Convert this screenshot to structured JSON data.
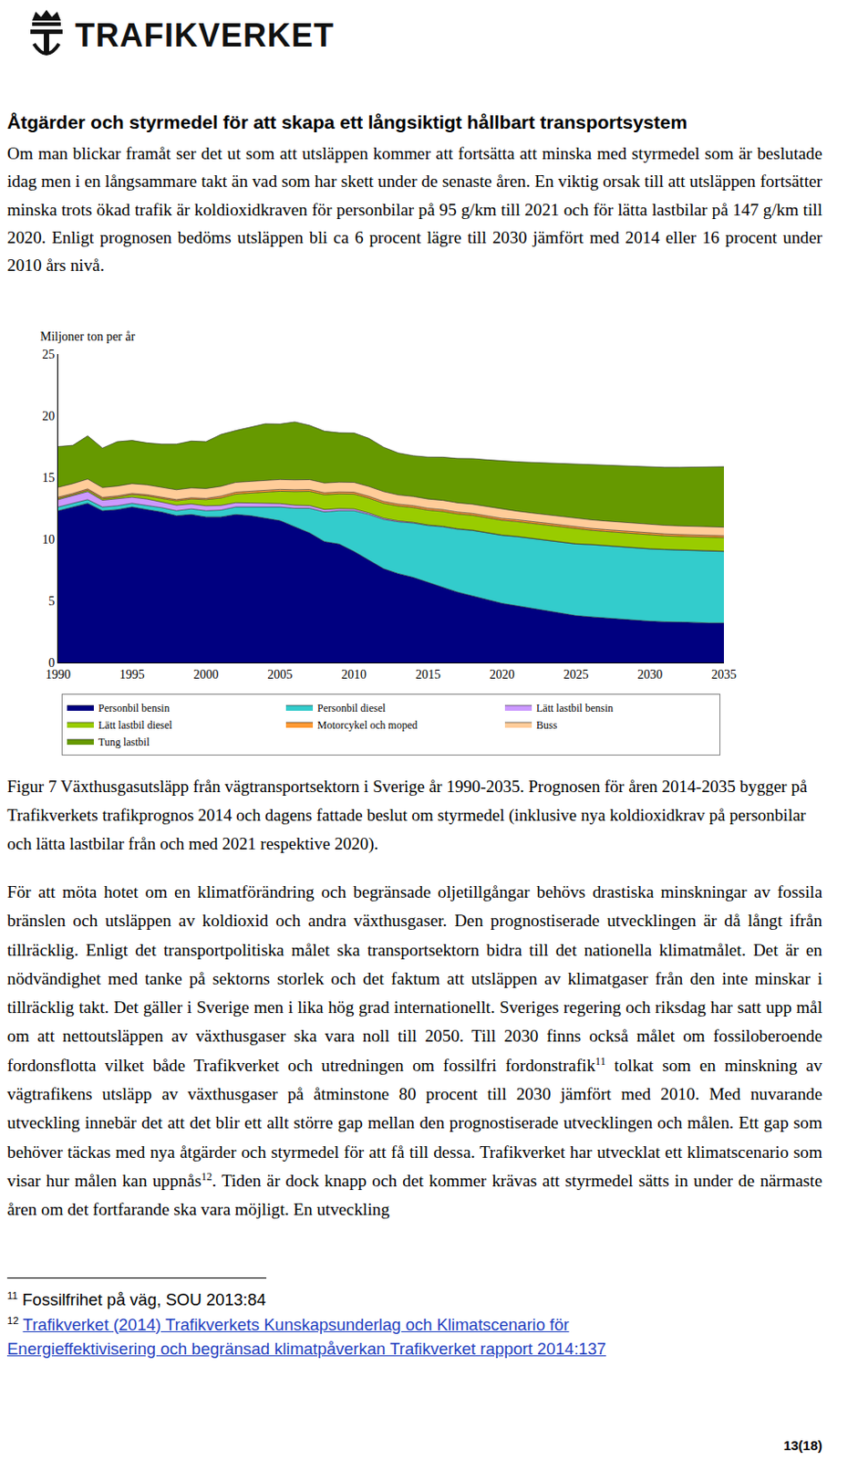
{
  "logo": "TRAFIKVERKET",
  "heading": "Åtgärder och styrmedel för att skapa ett långsiktigt hållbart transportsystem",
  "paragraphs_before": [
    [
      "Om man blickar framåt ser det ut som att utsläppen kommer att fortsätta att minska med styrmedel som är beslutade idag men i en långsammare takt än vad som har skett under de senaste åren. En viktig orsak till att utsläppen fortsätter minska trots ökad trafik är koldioxidkraven för personbilar på 95 g/km till 2021 och för lätta lastbilar på 147 g/km till 2020. Enligt prognosen bedöms utsläppen bli ca 6 procent lägre till 2030 jämfört med 2014 eller 16 procent under 2010 års nivå."
    ]
  ],
  "chart_data": {
    "type": "area",
    "stacked": true,
    "ylabel": "Miljoner ton per år",
    "x": [
      1990,
      1991,
      1992,
      1993,
      1994,
      1995,
      1996,
      1997,
      1998,
      1999,
      2000,
      2001,
      2002,
      2003,
      2004,
      2005,
      2006,
      2007,
      2008,
      2009,
      2010,
      2011,
      2012,
      2013,
      2014,
      2015,
      2016,
      2017,
      2018,
      2019,
      2020,
      2021,
      2022,
      2023,
      2024,
      2025,
      2026,
      2027,
      2028,
      2029,
      2030,
      2031,
      2032,
      2033,
      2034,
      2035
    ],
    "xlim": [
      1990,
      2035
    ],
    "xticks": [
      1990,
      1995,
      2000,
      2005,
      2010,
      2015,
      2020,
      2025,
      2030,
      2035
    ],
    "ylim": [
      0,
      25
    ],
    "yticks": [
      0,
      5,
      10,
      15,
      20,
      25
    ],
    "grid": false,
    "legend": "bottom",
    "series": [
      {
        "name": "Personbil bensin",
        "color": "#000080",
        "values": [
          12.3,
          12.6,
          12.9,
          12.3,
          12.4,
          12.6,
          12.4,
          12.2,
          11.9,
          12.0,
          11.8,
          11.8,
          12.0,
          11.9,
          11.7,
          11.5,
          11.0,
          10.5,
          9.8,
          9.6,
          9.0,
          8.3,
          7.6,
          7.2,
          6.9,
          6.5,
          6.1,
          5.7,
          5.4,
          5.1,
          4.8,
          4.6,
          4.4,
          4.2,
          4.0,
          3.8,
          3.7,
          3.6,
          3.5,
          3.4,
          3.35,
          3.3,
          3.3,
          3.25,
          3.2,
          3.2
        ]
      },
      {
        "name": "Personbil diesel",
        "color": "#33CCCC",
        "values": [
          0.3,
          0.3,
          0.3,
          0.3,
          0.3,
          0.3,
          0.35,
          0.35,
          0.4,
          0.45,
          0.5,
          0.55,
          0.6,
          0.7,
          0.9,
          1.1,
          1.5,
          2.0,
          2.4,
          2.7,
          3.3,
          3.7,
          4.0,
          4.2,
          4.4,
          4.6,
          4.9,
          5.1,
          5.3,
          5.4,
          5.5,
          5.6,
          5.65,
          5.7,
          5.75,
          5.8,
          5.85,
          5.85,
          5.85,
          5.85,
          5.85,
          5.85,
          5.8,
          5.8,
          5.8,
          5.8
        ]
      },
      {
        "name": "Lätt lastbil bensin",
        "color": "#CC99FF",
        "values": [
          0.6,
          0.6,
          0.65,
          0.55,
          0.55,
          0.5,
          0.5,
          0.45,
          0.45,
          0.4,
          0.4,
          0.38,
          0.35,
          0.33,
          0.3,
          0.28,
          0.25,
          0.22,
          0.2,
          0.17,
          0.15,
          0.12,
          0.1,
          0.08,
          0.06,
          0.05,
          0.04,
          0.04,
          0.03,
          0.03,
          0.03,
          0.02,
          0.02,
          0.02,
          0.02,
          0.02,
          0.02,
          0.02,
          0.02,
          0.02,
          0.02,
          0.02,
          0.02,
          0.02,
          0.02,
          0.02
        ]
      },
      {
        "name": "Lätt lastbil diesel",
        "color": "#99CC00",
        "values": [
          0.1,
          0.1,
          0.12,
          0.13,
          0.15,
          0.2,
          0.25,
          0.3,
          0.35,
          0.4,
          0.5,
          0.6,
          0.7,
          0.8,
          0.9,
          1.0,
          1.1,
          1.15,
          1.2,
          1.2,
          1.2,
          1.2,
          1.2,
          1.2,
          1.2,
          1.2,
          1.2,
          1.2,
          1.2,
          1.2,
          1.2,
          1.2,
          1.2,
          1.2,
          1.2,
          1.2,
          1.15,
          1.15,
          1.15,
          1.15,
          1.15,
          1.1,
          1.1,
          1.1,
          1.1,
          1.1
        ]
      },
      {
        "name": "Motorcykel och moped",
        "color": "#FF9933",
        "values": [
          0.1,
          0.1,
          0.1,
          0.1,
          0.1,
          0.1,
          0.1,
          0.1,
          0.1,
          0.1,
          0.1,
          0.15,
          0.15,
          0.15,
          0.15,
          0.15,
          0.15,
          0.15,
          0.15,
          0.15,
          0.15,
          0.15,
          0.15,
          0.15,
          0.15,
          0.15,
          0.15,
          0.15,
          0.15,
          0.15,
          0.15,
          0.15,
          0.15,
          0.15,
          0.15,
          0.15,
          0.15,
          0.15,
          0.15,
          0.15,
          0.15,
          0.15,
          0.15,
          0.15,
          0.15,
          0.15
        ]
      },
      {
        "name": "Buss",
        "color": "#FFCC99",
        "values": [
          0.8,
          0.8,
          0.8,
          0.8,
          0.8,
          0.8,
          0.8,
          0.8,
          0.8,
          0.8,
          0.8,
          0.8,
          0.8,
          0.8,
          0.8,
          0.8,
          0.8,
          0.8,
          0.8,
          0.8,
          0.8,
          0.8,
          0.8,
          0.75,
          0.75,
          0.75,
          0.75,
          0.75,
          0.75,
          0.75,
          0.75,
          0.7,
          0.7,
          0.7,
          0.7,
          0.7,
          0.7,
          0.7,
          0.7,
          0.7,
          0.7,
          0.7,
          0.7,
          0.7,
          0.7,
          0.7
        ]
      },
      {
        "name": "Tung lastbil",
        "color": "#669900",
        "values": [
          3.3,
          3.1,
          3.5,
          3.2,
          3.6,
          3.5,
          3.4,
          3.5,
          3.7,
          3.8,
          3.8,
          4.2,
          4.2,
          4.4,
          4.6,
          4.5,
          4.7,
          4.4,
          4.2,
          4.0,
          4.0,
          3.9,
          3.6,
          3.4,
          3.3,
          3.4,
          3.5,
          3.6,
          3.7,
          3.8,
          3.9,
          4.0,
          4.1,
          4.2,
          4.3,
          4.4,
          4.45,
          4.5,
          4.55,
          4.6,
          4.65,
          4.7,
          4.75,
          4.8,
          4.85,
          4.9
        ]
      }
    ]
  },
  "caption": "Figur 7 Växthusgasutsläpp från vägtransportsektorn i Sverige år 1990-2035. Prognosen för åren 2014-2035 bygger på Trafikverkets trafikprognos 2014 och dagens fattade beslut om styrmedel (inklusive nya koldioxidkrav på personbilar och lätta lastbilar från och med 2021 respektive 2020).",
  "paragraphs_after": [
    [
      "För att möta hotet om en klimatförändring och begränsade oljetillgångar behövs drastiska minskningar av fossila bränslen och utsläppen av koldioxid och andra växthusgaser. Den prognostiserade utvecklingen är då långt ifrån tillräcklig. Enligt det transportpolitiska målet ska transportsektorn bidra till det nationella klimatmålet. Det är en nödvändighet med tanke på sektorns storlek och det faktum att utsläppen av klimatgaser från den inte minskar i tillräcklig takt. Det gäller i Sverige men i lika hög grad internationellt. Sveriges regering och riksdag har satt upp mål om att nettoutsläppen av växthusgaser ska vara noll till 2050. Till 2030 finns också målet om fossiloberoende fordonsflotta vilket både Trafikverket och utredningen om fossilfri fordonstrafik",
      {
        "sup": "11"
      },
      " tolkat som en minskning av vägtrafikens utsläpp av växthusgaser på åtminstone 80 procent till 2030 jämfört med 2010.  Med nuvarande utveckling innebär det att det blir ett allt större gap mellan den prognostiserade utvecklingen och målen. Ett gap som behöver täckas med nya åtgärder och styrmedel för att få till dessa. Trafikverket har utvecklat ett klimatscenario som visar hur målen kan uppnås",
      {
        "sup": "12"
      },
      ". Tiden är dock knapp och det kommer krävas att styrmedel sätts in under de närmaste åren om det fortfarande ska vara möjligt. En utveckling"
    ]
  ],
  "footnotes": [
    {
      "number": "11",
      "text": "Fossilfrihet på väg, SOU 2013:84",
      "link": false
    },
    {
      "number": "12",
      "text": "Trafikverket (2014) Trafikverkets Kunskapsunderlag och Klimatscenario för Energieffektivisering och begränsad klimatpåverkan Trafikverket rapport 2014:137",
      "link": true
    }
  ],
  "page_number": "13(18)"
}
